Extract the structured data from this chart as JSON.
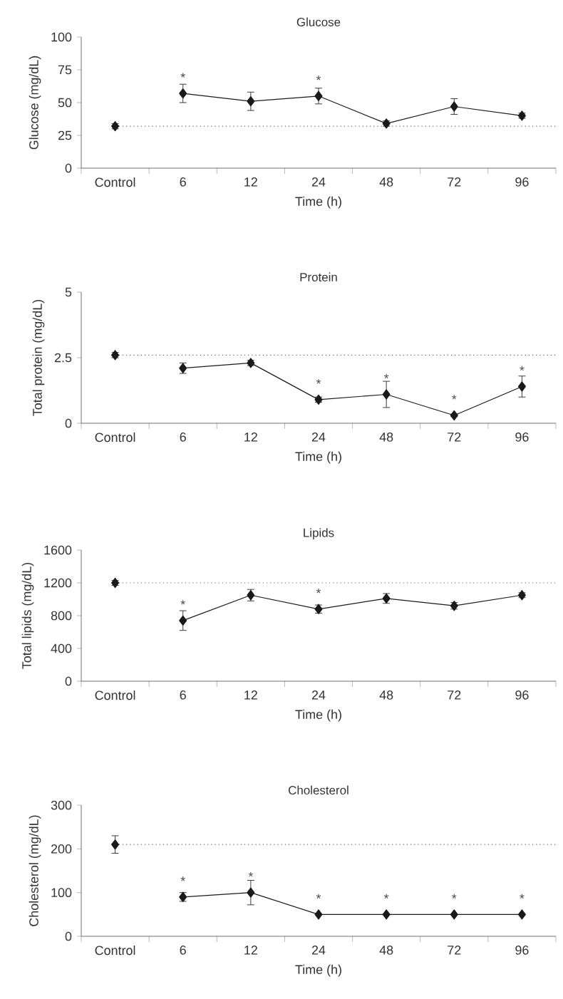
{
  "chart_data": [
    {
      "type": "line",
      "title": "Glucose",
      "xlabel": "Time (h)",
      "ylabel": "Glucose (mg/dL)",
      "categories": [
        "Control",
        "6",
        "12",
        "24",
        "48",
        "72",
        "96"
      ],
      "ylim": [
        0,
        100
      ],
      "yticks": [
        0,
        25,
        50,
        75,
        100
      ],
      "marker": "diamond",
      "line_style": "solid",
      "series": [
        {
          "type": "scatter",
          "color": "#1a1a1a",
          "values": [
            32,
            null,
            null,
            null,
            null,
            null,
            null
          ],
          "errors": [
            2,
            null,
            null,
            null,
            null,
            null,
            null
          ]
        },
        {
          "color": "#1a1a1a",
          "values": [
            null,
            57,
            51,
            55,
            34,
            47,
            40
          ],
          "errors": [
            null,
            7,
            7,
            6,
            2,
            6,
            2
          ]
        }
      ],
      "ref_lines": [
        {
          "axis": "y",
          "value": 32,
          "color": "#666666",
          "line_style": "dotted"
        }
      ],
      "annotations": [
        {
          "text": "*",
          "x": "6",
          "y": 57
        },
        {
          "text": "*",
          "x": "24",
          "y": 55
        }
      ]
    },
    {
      "type": "line",
      "title": "Protein",
      "xlabel": "Time (h)",
      "ylabel": "Total protein (mg/dL)",
      "categories": [
        "Control",
        "6",
        "12",
        "24",
        "48",
        "72",
        "96"
      ],
      "ylim": [
        0,
        5
      ],
      "yticks": [
        0,
        2.5,
        5
      ],
      "marker": "diamond",
      "line_style": "solid",
      "series": [
        {
          "type": "scatter",
          "color": "#1a1a1a",
          "values": [
            2.6,
            null,
            null,
            null,
            null,
            null,
            null
          ],
          "errors": [
            0.1,
            null,
            null,
            null,
            null,
            null,
            null
          ]
        },
        {
          "color": "#1a1a1a",
          "values": [
            null,
            2.1,
            2.3,
            0.9,
            1.1,
            0.3,
            1.4
          ],
          "errors": [
            null,
            0.2,
            0.1,
            0.1,
            0.5,
            0.05,
            0.4
          ]
        }
      ],
      "ref_lines": [
        {
          "axis": "y",
          "value": 2.6,
          "color": "#666666",
          "line_style": "dotted"
        }
      ],
      "annotations": [
        {
          "text": "*",
          "x": "24",
          "y": 0.9
        },
        {
          "text": "*",
          "x": "48",
          "y": 1.1
        },
        {
          "text": "*",
          "x": "72",
          "y": 0.3
        },
        {
          "text": "*",
          "x": "96",
          "y": 1.4
        }
      ]
    },
    {
      "type": "line",
      "title": "Lipids",
      "xlabel": "Time (h)",
      "ylabel": "Total lipids (mg/dL)",
      "categories": [
        "Control",
        "6",
        "12",
        "24",
        "48",
        "72",
        "96"
      ],
      "ylim": [
        0,
        1600
      ],
      "yticks": [
        0,
        400,
        800,
        1200,
        1600
      ],
      "marker": "diamond",
      "line_style": "solid",
      "series": [
        {
          "type": "scatter",
          "color": "#1a1a1a",
          "values": [
            1200,
            null,
            null,
            null,
            null,
            null,
            null
          ],
          "errors": [
            30,
            null,
            null,
            null,
            null,
            null,
            null
          ]
        },
        {
          "color": "#1a1a1a",
          "values": [
            null,
            740,
            1050,
            880,
            1010,
            920,
            1050
          ],
          "errors": [
            null,
            120,
            70,
            50,
            60,
            40,
            30
          ]
        }
      ],
      "ref_lines": [
        {
          "axis": "y",
          "value": 1200,
          "color": "#666666",
          "line_style": "dotted"
        }
      ],
      "annotations": [
        {
          "text": "*",
          "x": "6",
          "y": 740
        },
        {
          "text": "*",
          "x": "24",
          "y": 880
        }
      ]
    },
    {
      "type": "line",
      "title": "Cholesterol",
      "xlabel": "Time (h)",
      "ylabel": "Cholesterol (mg/dL)",
      "categories": [
        "Control",
        "6",
        "12",
        "24",
        "48",
        "72",
        "96"
      ],
      "ylim": [
        0,
        300
      ],
      "yticks": [
        0,
        100,
        200,
        300
      ],
      "marker": "diamond",
      "line_style": "solid",
      "series": [
        {
          "type": "scatter",
          "color": "#1a1a1a",
          "values": [
            210,
            null,
            null,
            null,
            null,
            null,
            null
          ],
          "errors": [
            20,
            null,
            null,
            null,
            null,
            null,
            null
          ]
        },
        {
          "color": "#1a1a1a",
          "values": [
            null,
            90,
            100,
            50,
            50,
            50,
            50
          ],
          "errors": [
            null,
            10,
            28,
            null,
            null,
            null,
            null
          ]
        }
      ],
      "ref_lines": [
        {
          "axis": "y",
          "value": 210,
          "color": "#666666",
          "line_style": "dotted"
        }
      ],
      "annotations": [
        {
          "text": "*",
          "x": "6",
          "y": 90
        },
        {
          "text": "*",
          "x": "12",
          "y": 100
        },
        {
          "text": "*",
          "x": "24",
          "y": 50
        },
        {
          "text": "*",
          "x": "48",
          "y": 50
        },
        {
          "text": "*",
          "x": "72",
          "y": 50
        },
        {
          "text": "*",
          "x": "96",
          "y": 50
        }
      ]
    }
  ]
}
